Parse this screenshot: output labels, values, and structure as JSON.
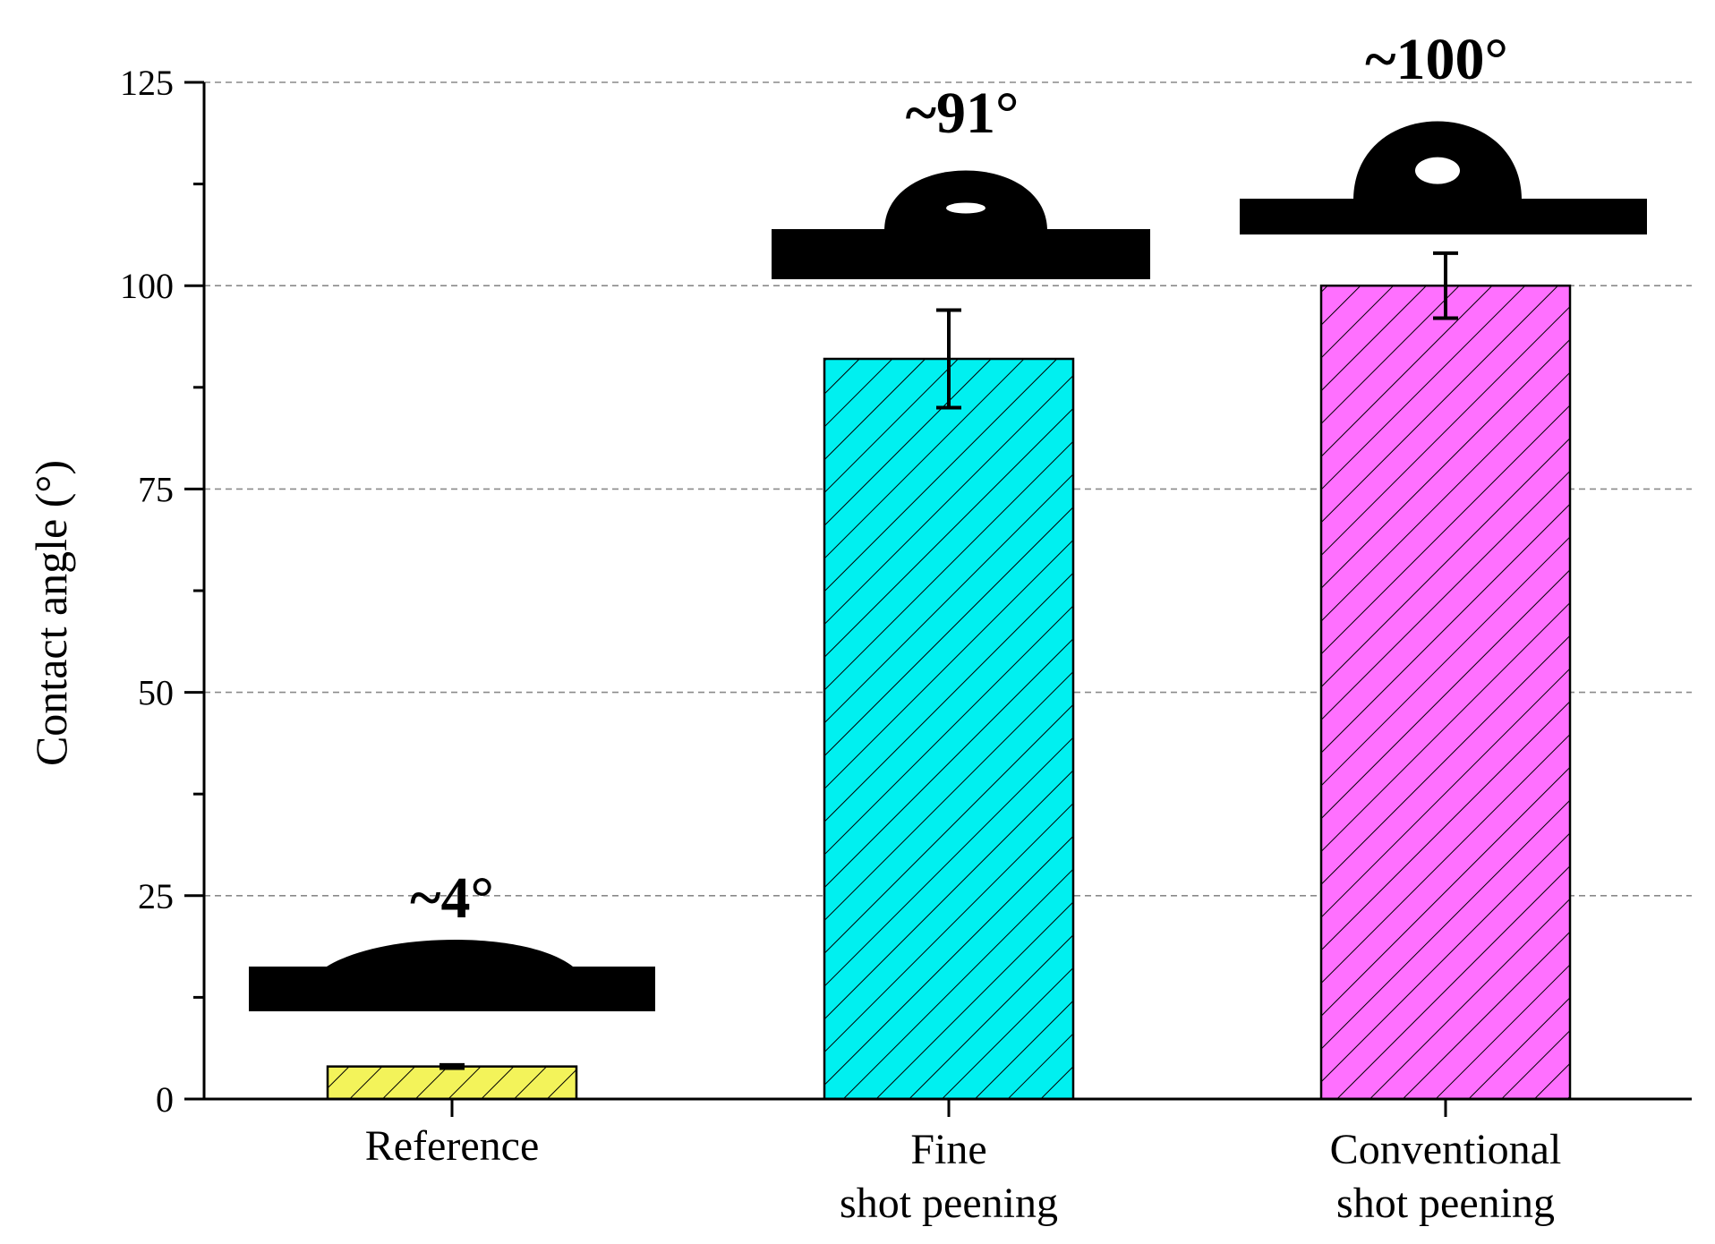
{
  "chart_data": {
    "type": "bar",
    "categories": [
      [
        "Reference"
      ],
      [
        "Fine",
        "shot peening"
      ],
      [
        "Conventional",
        "shot peening"
      ]
    ],
    "values": [
      4,
      91,
      100
    ],
    "errors": [
      0.2,
      6,
      4
    ],
    "colors": [
      "#f3f35a",
      "#00f0f0",
      "#ff70ff"
    ],
    "pattern": "diagonal-hatch",
    "annotations": [
      "~4°",
      "~91°",
      "~100°"
    ],
    "ylabel": "Contact angle (°)",
    "xlabel": "",
    "ylim": [
      0,
      125
    ],
    "yticks": [
      0,
      25,
      50,
      75,
      100,
      125
    ],
    "grid": "dashed horizontal",
    "legend": "none",
    "insets": "water droplet silhouettes above each bar"
  }
}
